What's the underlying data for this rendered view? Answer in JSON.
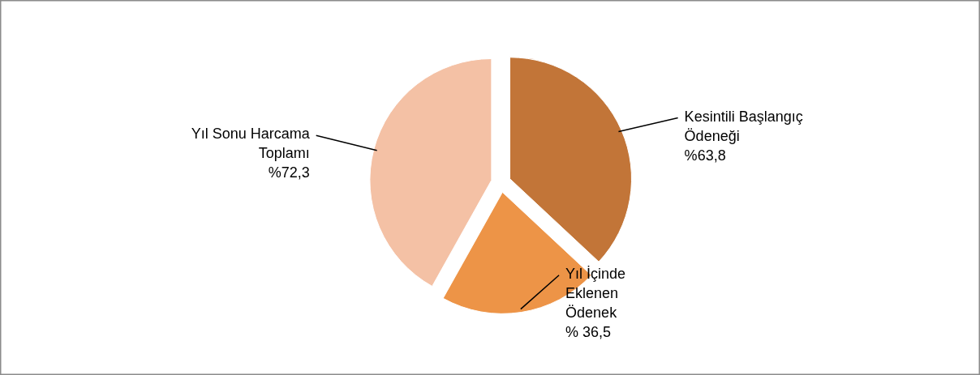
{
  "chart_data": {
    "type": "pie",
    "categories": [
      "Kesintili Başlangıç\nÖdeneği",
      "Yıl İçinde\nEklenen\nÖdenek",
      "Yıl Sonu Harcama\nToplamı"
    ],
    "values": [
      63.8,
      36.5,
      72.3
    ],
    "colors": [
      "#c27538",
      "#ed9447",
      "#f4c1a5"
    ],
    "value_labels": [
      "%63,8",
      "% 36,5",
      "%72,3"
    ]
  }
}
